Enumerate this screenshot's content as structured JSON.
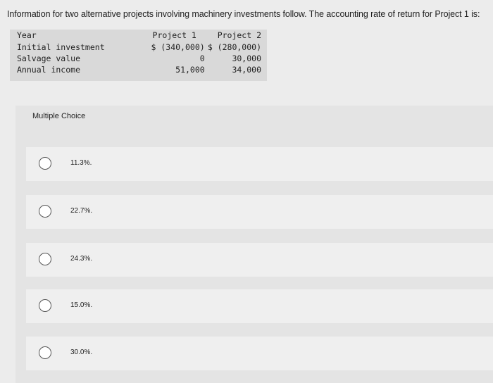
{
  "question": {
    "text": "Information for two alternative projects involving machinery investments follow. The accounting rate of return for Project 1 is:"
  },
  "table": {
    "headers": [
      "Year",
      "Project 1",
      "Project 2"
    ],
    "rows": [
      [
        "Initial investment",
        "$ (340,000)",
        "$ (280,000)"
      ],
      [
        "Salvage value",
        "0",
        "30,000"
      ],
      [
        "Annual income",
        "51,000",
        "34,000"
      ]
    ]
  },
  "multiple_choice": {
    "header": "Multiple Choice",
    "options": [
      "11.3%.",
      "22.7%.",
      "24.3%.",
      "15.0%.",
      "30.0%."
    ]
  }
}
